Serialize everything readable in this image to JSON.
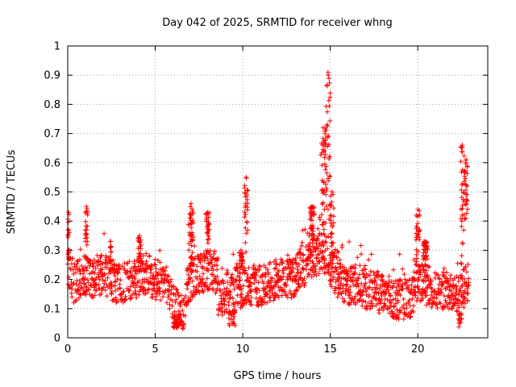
{
  "chart_data": {
    "type": "scatter",
    "title": "Day 042 of 2025, SRMTID for receiver whng",
    "xlabel": "GPS time / hours",
    "ylabel": "SRMTID / TECUs",
    "xlim": [
      0,
      24
    ],
    "ylim": [
      0,
      1
    ],
    "xticks": [
      0,
      5,
      10,
      15,
      20
    ],
    "yticks": [
      0,
      0.1,
      0.2,
      0.3,
      0.4,
      0.5,
      0.6,
      0.7,
      0.8,
      0.9,
      1
    ],
    "grid": true,
    "marker": "+",
    "series_color": "#ff0000",
    "baseline_segments": [
      {
        "x": [
          0.0,
          0.4,
          0.8,
          1.2
        ],
        "y": [
          0.25,
          0.18,
          0.22,
          0.2
        ]
      },
      {
        "x": [
          1.2,
          2.0,
          3.0,
          3.8
        ],
        "y": [
          0.2,
          0.22,
          0.18,
          0.2
        ]
      },
      {
        "x": [
          3.8,
          4.5,
          5.0,
          5.6
        ],
        "y": [
          0.2,
          0.22,
          0.2,
          0.18
        ]
      },
      {
        "x": [
          5.6,
          6.0,
          6.4,
          6.8
        ],
        "y": [
          0.18,
          0.12,
          0.08,
          0.12
        ]
      },
      {
        "x": [
          6.8,
          7.5,
          8.2,
          8.6
        ],
        "y": [
          0.18,
          0.22,
          0.24,
          0.2
        ]
      },
      {
        "x": [
          8.6,
          9.0,
          9.6,
          10.0
        ],
        "y": [
          0.14,
          0.15,
          0.18,
          0.16
        ]
      },
      {
        "x": [
          10.0,
          11.0,
          12.0,
          13.0
        ],
        "y": [
          0.18,
          0.18,
          0.2,
          0.2
        ]
      },
      {
        "x": [
          13.0,
          13.6,
          14.2,
          14.6
        ],
        "y": [
          0.22,
          0.25,
          0.28,
          0.3
        ]
      },
      {
        "x": [
          14.6,
          15.2,
          16.0,
          17.0
        ],
        "y": [
          0.3,
          0.22,
          0.18,
          0.18
        ]
      },
      {
        "x": [
          17.0,
          18.0,
          19.0,
          19.8
        ],
        "y": [
          0.17,
          0.15,
          0.13,
          0.14
        ]
      },
      {
        "x": [
          19.8,
          20.4,
          21.2,
          22.0
        ],
        "y": [
          0.2,
          0.18,
          0.17,
          0.16
        ]
      },
      {
        "x": [
          22.0,
          22.4,
          22.9
        ],
        "y": [
          0.15,
          0.14,
          0.2
        ]
      }
    ],
    "bursts": [
      {
        "x_start": 0.0,
        "x_end": 0.1,
        "y_low": 0.25,
        "y_high": 0.43
      },
      {
        "x_start": 1.0,
        "x_end": 1.15,
        "y_low": 0.25,
        "y_high": 0.45
      },
      {
        "x_start": 2.4,
        "x_end": 2.5,
        "y_low": 0.22,
        "y_high": 0.33
      },
      {
        "x_start": 4.0,
        "x_end": 4.2,
        "y_low": 0.22,
        "y_high": 0.35
      },
      {
        "x_start": 6.9,
        "x_end": 7.2,
        "y_low": 0.22,
        "y_high": 0.46
      },
      {
        "x_start": 7.9,
        "x_end": 8.1,
        "y_low": 0.28,
        "y_high": 0.43
      },
      {
        "x_start": 9.8,
        "x_end": 10.0,
        "y_low": 0.2,
        "y_high": 0.3
      },
      {
        "x_start": 10.1,
        "x_end": 10.3,
        "y_low": 0.28,
        "y_high": 0.55
      },
      {
        "x_start": 13.8,
        "x_end": 14.1,
        "y_low": 0.28,
        "y_high": 0.45
      },
      {
        "x_start": 14.45,
        "x_end": 14.75,
        "y_low": 0.35,
        "y_high": 0.72
      },
      {
        "x_start": 14.75,
        "x_end": 15.0,
        "y_low": 0.4,
        "y_high": 0.91
      },
      {
        "x_start": 15.0,
        "x_end": 15.2,
        "y_low": 0.25,
        "y_high": 0.5
      },
      {
        "x_start": 19.9,
        "x_end": 20.1,
        "y_low": 0.22,
        "y_high": 0.44
      },
      {
        "x_start": 20.3,
        "x_end": 20.6,
        "y_low": 0.22,
        "y_high": 0.33
      },
      {
        "x_start": 22.45,
        "x_end": 22.65,
        "y_low": 0.2,
        "y_high": 0.66
      },
      {
        "x_start": 22.65,
        "x_end": 22.85,
        "y_low": 0.4,
        "y_high": 0.61
      }
    ],
    "dips": [
      {
        "x_start": 6.0,
        "x_end": 6.5,
        "y_low": 0.03,
        "y_high": 0.08
      },
      {
        "x_start": 9.2,
        "x_end": 9.6,
        "y_low": 0.04,
        "y_high": 0.1
      },
      {
        "x_start": 22.3,
        "x_end": 22.5,
        "y_low": 0.03,
        "y_high": 0.08
      }
    ],
    "baseline_scatter": 0.07,
    "baseline_step_hours": 0.025
  }
}
